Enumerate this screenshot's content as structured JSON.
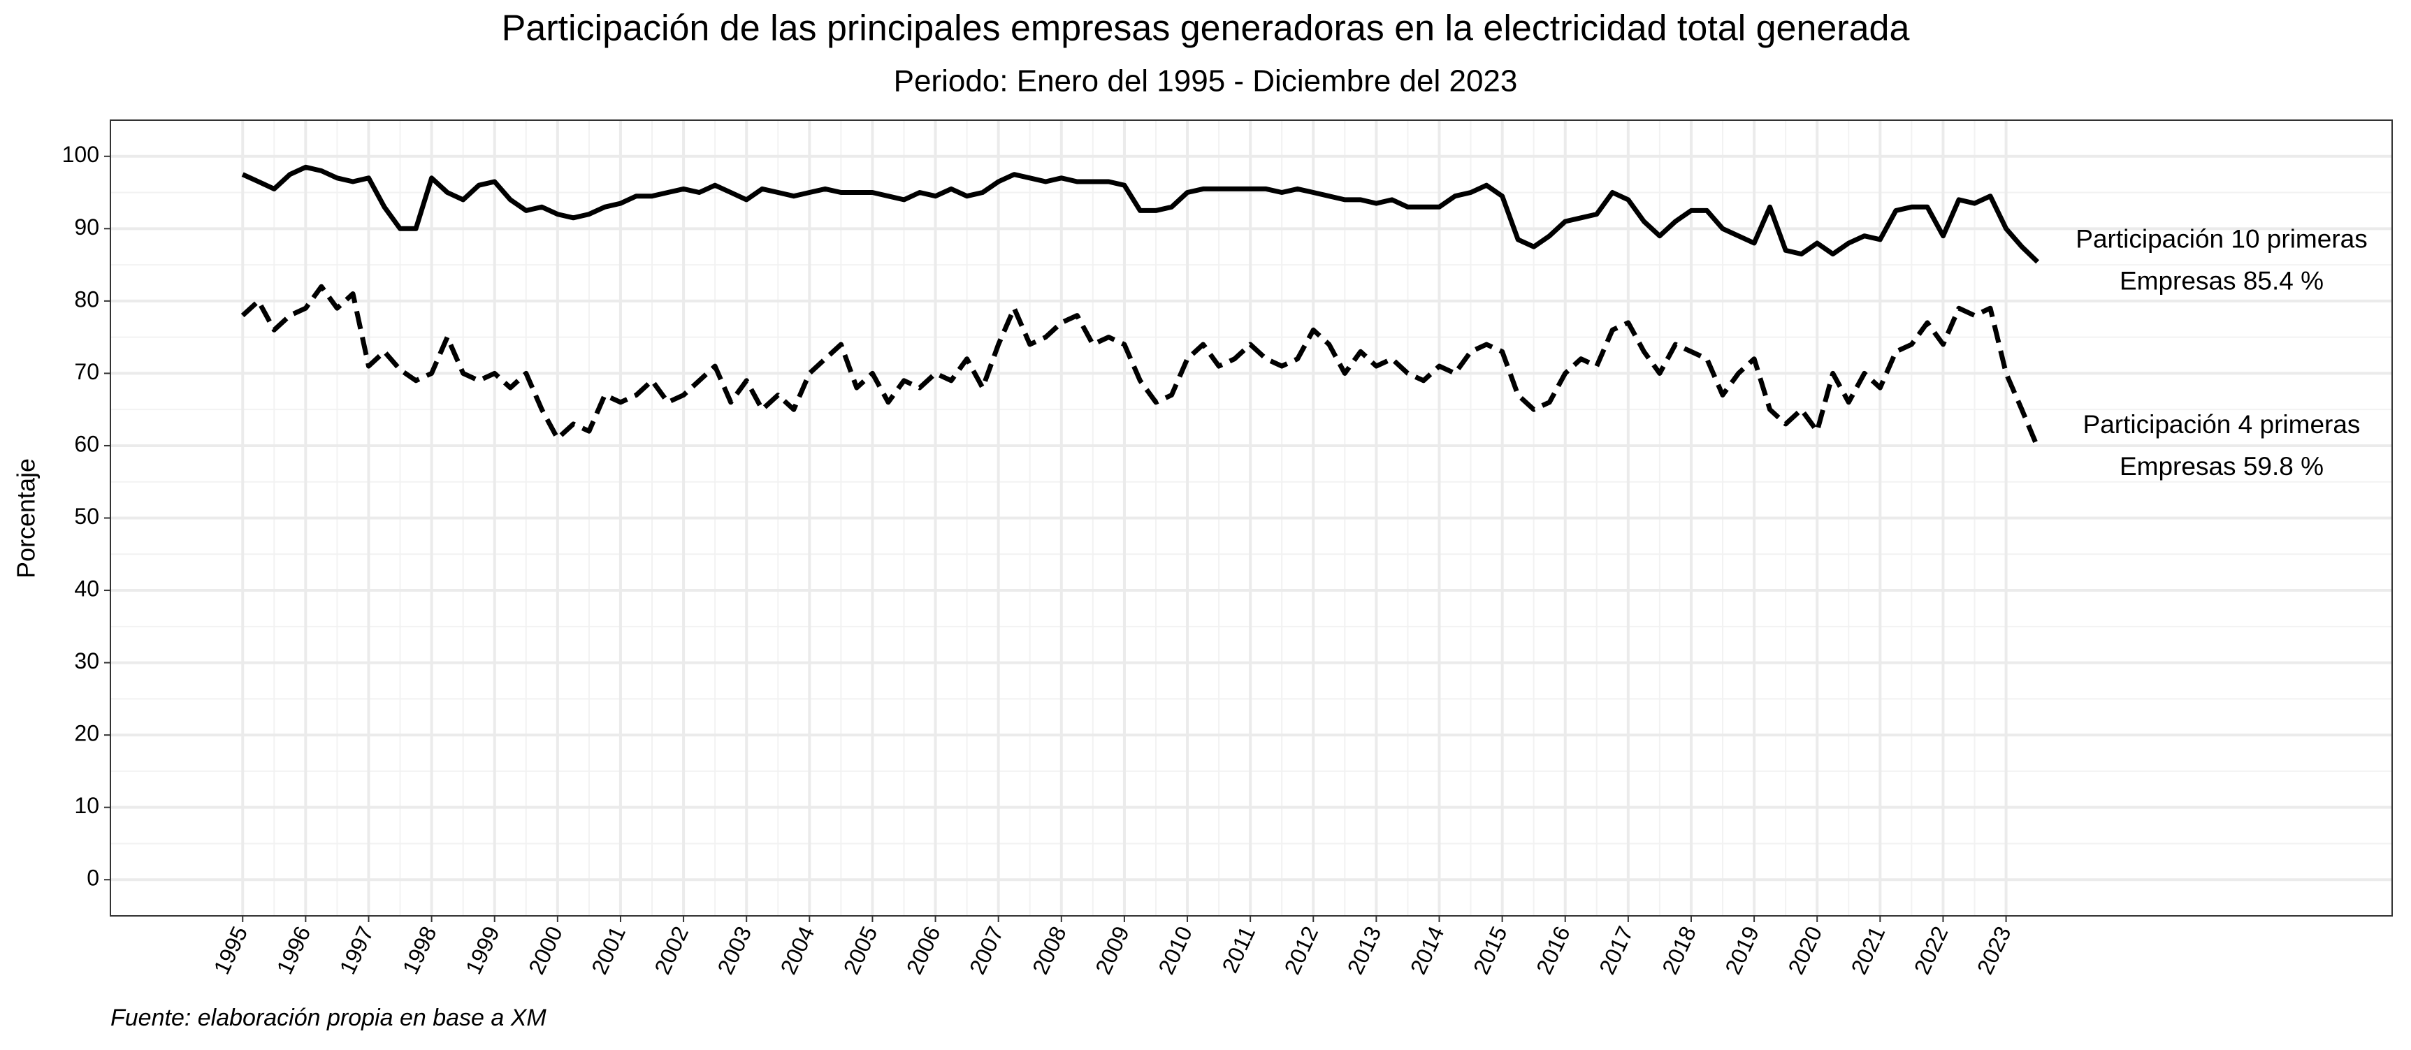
{
  "chart_data": {
    "type": "line",
    "title": "Participación de las principales empresas generadoras en la electricidad total generada",
    "subtitle": "Periodo: Enero del 1995 - Diciembre del 2023",
    "ylabel": "Porcentaje",
    "caption": "Fuente: elaboración propia en base a XM",
    "x": [
      1995,
      1995.25,
      1995.5,
      1995.75,
      1996,
      1996.25,
      1996.5,
      1996.75,
      1997,
      1997.25,
      1997.5,
      1997.75,
      1998,
      1998.25,
      1998.5,
      1998.75,
      1999,
      1999.25,
      1999.5,
      1999.75,
      2000,
      2000.25,
      2000.5,
      2000.75,
      2001,
      2001.25,
      2001.5,
      2001.75,
      2002,
      2002.25,
      2002.5,
      2002.75,
      2003,
      2003.25,
      2003.5,
      2003.75,
      2004,
      2004.25,
      2004.5,
      2004.75,
      2005,
      2005.25,
      2005.5,
      2005.75,
      2006,
      2006.25,
      2006.5,
      2006.75,
      2007,
      2007.25,
      2007.5,
      2007.75,
      2008,
      2008.25,
      2008.5,
      2008.75,
      2009,
      2009.25,
      2009.5,
      2009.75,
      2010,
      2010.25,
      2010.5,
      2010.75,
      2011,
      2011.25,
      2011.5,
      2011.75,
      2012,
      2012.25,
      2012.5,
      2012.75,
      2013,
      2013.25,
      2013.5,
      2013.75,
      2014,
      2014.25,
      2014.5,
      2014.75,
      2015,
      2015.25,
      2015.5,
      2015.75,
      2016,
      2016.25,
      2016.5,
      2016.75,
      2017,
      2017.25,
      2017.5,
      2017.75,
      2018,
      2018.25,
      2018.5,
      2018.75,
      2019,
      2019.25,
      2019.5,
      2019.75,
      2020,
      2020.25,
      2020.5,
      2020.75,
      2021,
      2021.25,
      2021.5,
      2021.75,
      2022,
      2022.25,
      2022.5,
      2022.75,
      2023,
      2023.25,
      2023.5
    ],
    "series": [
      {
        "color": "#000000",
        "linetype": "solid",
        "annotation": [
          "Participación 10 primeras",
          "Empresas 85.4 %"
        ],
        "values": [
          97.5,
          96.5,
          95.5,
          97.5,
          98.5,
          98,
          97,
          96.5,
          97,
          93,
          90,
          90,
          97,
          95,
          94,
          96,
          96.5,
          94,
          92.5,
          93,
          92,
          91.5,
          92,
          93,
          93.5,
          94.5,
          94.5,
          95,
          95.5,
          95,
          96,
          95,
          94,
          95.5,
          95,
          94.5,
          95,
          95.5,
          95,
          95,
          95,
          94.5,
          94,
          95,
          94.5,
          95.5,
          94.5,
          95,
          96.5,
          97.5,
          97,
          96.5,
          97,
          96.5,
          96.5,
          96.5,
          96,
          92.5,
          92.5,
          93,
          95,
          95.5,
          95.5,
          95.5,
          95.5,
          95.5,
          95,
          95.5,
          95,
          94.5,
          94,
          94,
          93.5,
          94,
          93,
          93,
          93,
          94.5,
          95,
          96,
          94.5,
          88.5,
          87.5,
          89,
          91,
          91.5,
          92,
          95,
          94,
          91,
          89,
          91,
          92.5,
          92.5,
          90,
          89,
          88,
          93,
          87,
          86.5,
          88,
          86.5,
          88,
          89,
          88.5,
          92.5,
          93,
          93,
          89,
          94,
          93.5,
          94.5,
          90,
          87.5,
          85.4
        ]
      },
      {
        "color": "#000000",
        "linetype": "dashed",
        "annotation": [
          "Participación 4 primeras",
          "Empresas 59.8 %"
        ],
        "values": [
          78,
          80,
          76,
          78,
          79,
          82,
          79,
          81,
          71,
          73,
          70.5,
          69,
          70,
          75,
          70,
          69,
          70,
          68,
          70,
          65,
          61,
          63,
          62,
          67,
          66,
          67,
          69,
          66,
          67,
          69,
          71,
          66,
          69,
          65,
          67,
          65,
          70,
          72,
          74,
          68,
          70,
          66,
          69,
          68,
          70,
          69,
          72,
          68,
          74,
          79,
          74,
          75,
          77,
          78,
          74,
          75,
          74,
          69,
          66,
          67,
          72,
          74,
          71,
          72,
          74,
          72,
          71,
          72,
          76,
          74,
          70,
          73,
          71,
          72,
          70,
          69,
          71,
          70,
          73,
          74,
          73,
          67,
          65,
          66,
          70,
          72,
          71,
          76,
          77,
          73,
          70,
          74,
          73,
          72,
          67,
          70,
          72,
          65,
          63,
          65,
          62,
          70,
          66,
          70,
          68,
          73,
          74,
          77,
          74,
          79,
          78,
          79,
          70,
          65,
          59.8
        ]
      }
    ],
    "xlim": [
      1992.9,
      2029.13
    ],
    "xticks": [
      1995,
      1996,
      1997,
      1998,
      1999,
      2000,
      2001,
      2002,
      2003,
      2004,
      2005,
      2006,
      2007,
      2008,
      2009,
      2010,
      2011,
      2012,
      2013,
      2014,
      2015,
      2016,
      2017,
      2018,
      2019,
      2020,
      2021,
      2022,
      2023
    ],
    "ylim": [
      -5,
      105
    ],
    "yticks": [
      0,
      10,
      20,
      30,
      40,
      50,
      60,
      70,
      80,
      90,
      100
    ],
    "grid": true
  }
}
